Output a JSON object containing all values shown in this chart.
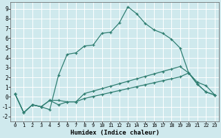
{
  "xlabel": "Humidex (Indice chaleur)",
  "background_color": "#cfe9ed",
  "line_color": "#2e7d70",
  "grid_color": "#b8dde3",
  "xlim": [
    -0.5,
    23.5
  ],
  "ylim": [
    -2.5,
    9.7
  ],
  "xticks": [
    0,
    1,
    2,
    3,
    4,
    5,
    6,
    7,
    8,
    9,
    10,
    11,
    12,
    13,
    14,
    15,
    16,
    17,
    18,
    19,
    20,
    21,
    22,
    23
  ],
  "yticks": [
    -2,
    -1,
    0,
    1,
    2,
    3,
    4,
    5,
    6,
    7,
    8,
    9
  ],
  "lines": [
    {
      "x": [
        0,
        1,
        2,
        3,
        4,
        5,
        6,
        7,
        8,
        9,
        10,
        11,
        12,
        13,
        14,
        15,
        16,
        17,
        18,
        19,
        20,
        21,
        22,
        23
      ],
      "y": [
        0.3,
        -1.6,
        -0.8,
        -1.0,
        -1.3,
        2.2,
        4.35,
        4.5,
        5.2,
        5.3,
        6.5,
        6.6,
        7.55,
        9.2,
        8.5,
        7.5,
        6.85,
        6.5,
        5.9,
        5.0,
        2.45,
        1.3,
        0.5,
        0.2
      ]
    },
    {
      "x": [
        0,
        1,
        2,
        3,
        4,
        5,
        6,
        7,
        8,
        9,
        10,
        11,
        12,
        13,
        14,
        15,
        16,
        17,
        18,
        19,
        20,
        21,
        22,
        23
      ],
      "y": [
        0.3,
        -1.6,
        -0.8,
        -1.0,
        -0.35,
        -0.35,
        -0.5,
        -0.5,
        0.35,
        0.6,
        0.85,
        1.1,
        1.35,
        1.6,
        1.85,
        2.1,
        2.35,
        2.6,
        2.85,
        3.1,
        2.45,
        1.5,
        1.15,
        0.2
      ]
    },
    {
      "x": [
        0,
        1,
        2,
        3,
        4,
        5,
        6,
        7,
        8,
        9,
        10,
        11,
        12,
        13,
        14,
        15,
        16,
        17,
        18,
        19,
        20,
        21,
        22,
        23
      ],
      "y": [
        0.3,
        -1.6,
        -0.8,
        -1.0,
        -0.35,
        -0.8,
        -0.5,
        -0.5,
        -0.15,
        0.05,
        0.25,
        0.45,
        0.65,
        0.85,
        1.05,
        1.25,
        1.45,
        1.65,
        1.85,
        2.05,
        2.45,
        1.3,
        0.5,
        0.2
      ]
    }
  ]
}
